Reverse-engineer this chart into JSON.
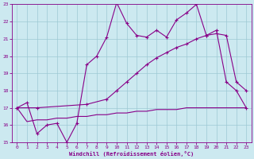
{
  "xlabel": "Windchill (Refroidissement éolien,°C)",
  "xlim": [
    -0.5,
    23.5
  ],
  "ylim": [
    15,
    23
  ],
  "yticks": [
    15,
    16,
    17,
    18,
    19,
    20,
    21,
    22,
    23
  ],
  "xticks": [
    0,
    1,
    2,
    3,
    4,
    5,
    6,
    7,
    8,
    9,
    10,
    11,
    12,
    13,
    14,
    15,
    16,
    17,
    18,
    19,
    20,
    21,
    22,
    23
  ],
  "bg_color": "#cce9f0",
  "grid_color": "#9dc8d4",
  "line_color": "#880088",
  "line1_x": [
    0,
    1,
    2,
    3,
    4,
    5,
    6,
    7,
    8,
    9,
    10,
    11,
    12,
    13,
    14,
    15,
    16,
    17,
    18,
    19,
    20,
    21,
    22,
    23
  ],
  "line1_y": [
    17.0,
    17.3,
    15.5,
    16.0,
    16.1,
    15.0,
    16.1,
    19.5,
    20.0,
    21.1,
    23.1,
    21.9,
    21.2,
    21.1,
    21.5,
    21.1,
    22.1,
    22.5,
    23.0,
    21.2,
    21.5,
    18.5,
    18.0,
    17.0
  ],
  "line2_x": [
    0,
    2,
    7,
    9,
    10,
    11,
    12,
    13,
    14,
    15,
    16,
    17,
    18,
    19,
    20,
    21,
    22,
    23
  ],
  "line2_y": [
    17.0,
    17.0,
    17.2,
    17.5,
    18.0,
    18.5,
    19.0,
    19.5,
    19.9,
    20.2,
    20.5,
    20.7,
    21.0,
    21.2,
    21.3,
    21.2,
    18.5,
    18.0
  ],
  "line3_x": [
    0,
    1,
    2,
    3,
    4,
    5,
    6,
    7,
    8,
    9,
    10,
    11,
    12,
    13,
    14,
    15,
    16,
    17,
    18,
    19,
    20,
    21,
    22,
    23
  ],
  "line3_y": [
    17.0,
    16.2,
    16.3,
    16.3,
    16.4,
    16.4,
    16.5,
    16.5,
    16.6,
    16.6,
    16.7,
    16.7,
    16.8,
    16.8,
    16.9,
    16.9,
    16.9,
    17.0,
    17.0,
    17.0,
    17.0,
    17.0,
    17.0,
    17.0
  ]
}
